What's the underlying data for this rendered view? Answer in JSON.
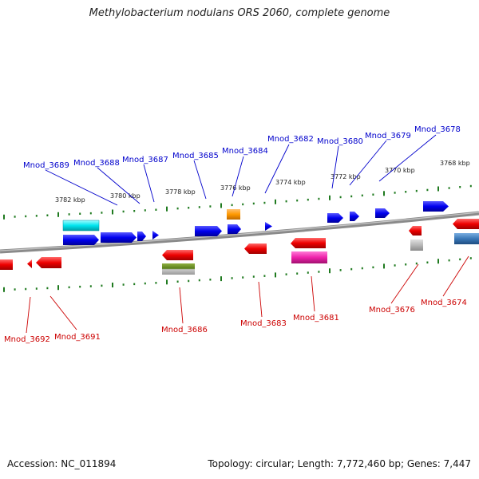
{
  "title": "Methylobacterium nodulans ORS 2060, complete genome",
  "footer": {
    "accession": "Accession: NC_011894",
    "summary": "Topology: circular; Length: 7,772,460 bp; Genes: 7,447"
  },
  "colors": {
    "forward_label": "#0000cc",
    "reverse_label": "#cc0000",
    "backbone": "#808080",
    "tick": "#1f7a1f",
    "forward_gene": "#0000ee",
    "reverse_gene": "#ee0000"
  },
  "scale_labels": [
    "3782 kbp",
    "3780 kbp",
    "3778 kbp",
    "3776 kbp",
    "3774 kbp",
    "3772 kbp",
    "3770 kbp",
    "3768 kbp"
  ],
  "forward_labels": [
    "Mnod_3689",
    "Mnod_3688",
    "Mnod_3687",
    "Mnod_3685",
    "Mnod_3684",
    "Mnod_3682",
    "Mnod_3680",
    "Mnod_3679",
    "Mnod_3678"
  ],
  "reverse_labels": [
    "Mnod_3692",
    "Mnod_3691",
    "Mnod_3686",
    "Mnod_3683",
    "Mnod_3681",
    "Mnod_3676",
    "Mnod_3674"
  ]
}
